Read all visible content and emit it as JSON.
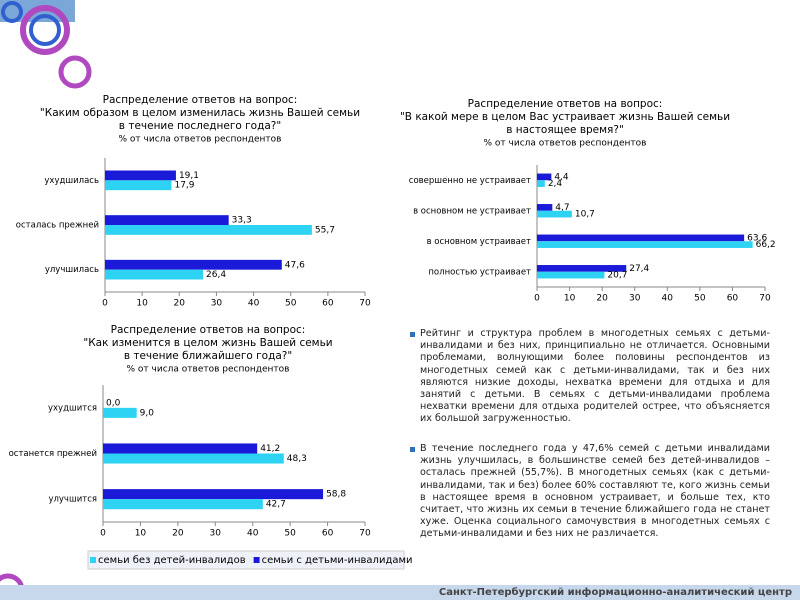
{
  "chart_data": [
    {
      "type": "hbar",
      "title": [
        "Распределение ответов на вопрос:",
        "\"Каким образом в целом изменилась жизнь Вашей семьи",
        "в течение последнего года?\"",
        "% от числа ответов респондентов"
      ],
      "categories": [
        "ухудшилась",
        "осталась прежней",
        "улучшилась"
      ],
      "series": [
        {
          "color": "#1a1ad8",
          "values": [
            19.1,
            33.3,
            47.6
          ],
          "value_labels": [
            "19,1",
            "33,3",
            "47,6"
          ]
        },
        {
          "color": "#2ed3f3",
          "values": [
            17.9,
            55.7,
            26.4
          ],
          "value_labels": [
            "17,9",
            "55,7",
            "26,4"
          ]
        }
      ],
      "xlim": [
        0,
        70
      ],
      "xticks": [
        0,
        10,
        20,
        30,
        40,
        50,
        60,
        70
      ]
    },
    {
      "type": "hbar",
      "title": [
        "Распределение ответов на вопрос:",
        "\"В какой мере в целом Вас устраивает жизнь Вашей семьи",
        "в настоящее время?\"",
        "% от числа ответов респондентов"
      ],
      "categories": [
        "совершенно не устраивает",
        "в основном не устраивает",
        "в основном устраивает",
        "полностью устраивает"
      ],
      "series": [
        {
          "color": "#1a1ad8",
          "values": [
            4.4,
            4.7,
            63.6,
            27.4
          ],
          "value_labels": [
            "4,4",
            "4,7",
            "63,6",
            "27,4"
          ]
        },
        {
          "color": "#2ed3f3",
          "values": [
            2.4,
            10.7,
            66.2,
            20.7
          ],
          "value_labels": [
            "2,4",
            "10,7",
            "66,2",
            "20,7"
          ]
        }
      ],
      "xlim": [
        0,
        70
      ],
      "xticks": [
        0,
        10,
        20,
        30,
        40,
        50,
        60,
        70
      ]
    },
    {
      "type": "hbar",
      "title": [
        "Распределение ответов на вопрос:",
        "\"Как изменится в целом жизнь Вашей семьи",
        "в течение ближайшего года?\"",
        "% от числа ответов респондентов"
      ],
      "categories": [
        "ухудшится",
        "останется прежней",
        "улучшится"
      ],
      "series": [
        {
          "name": "семьи с детьми-инвалидами",
          "color": "#1a1ad8",
          "values": [
            0.0,
            41.2,
            58.8
          ],
          "value_labels": [
            "0,0",
            "41,2",
            "58,8"
          ]
        },
        {
          "name": "семьи без детей-инвалидов",
          "color": "#2ed3f3",
          "values": [
            9.0,
            48.3,
            42.7
          ],
          "value_labels": [
            "9,0",
            "48,3",
            "42,7"
          ]
        }
      ],
      "xlim": [
        0,
        70
      ],
      "xticks": [
        0,
        10,
        20,
        30,
        40,
        50,
        60,
        70
      ]
    }
  ],
  "text": [
    "Рейтинг и структура проблем в многодетных семьях с детьми-инвалидами и без них, принципиально не отличается. Основными проблемами, волнующими более половины респондентов из многодетных семей как с детьми-инвалидами, так и без них являются низкие доходы, нехватка времени для отдыха и для занятий с детьми. В семьях с детьми-инвалидами проблема нехватки времени для отдыха родителей острее, что объясняется их большой загруженностью.",
    "В течение последнего года у 47,6% семей с детьми инвалидами жизнь улучшилась, в большинстве семей без детей-инвалидов – осталась прежней (55,7%). В многодетных семьях (как с детьми-инвалидами, так и без) более 60% составляют те, кого жизнь семьи в настоящее время в основном устраивает, и больше тех, кто считает, что жизнь их семьи в течение ближайшего года не станет хуже. Оценка социального самочувствия в многодетных семьях с детьми-инвалидами и без них не различается."
  ],
  "footer": "Санкт-Петербургский информационно-аналитический центр"
}
